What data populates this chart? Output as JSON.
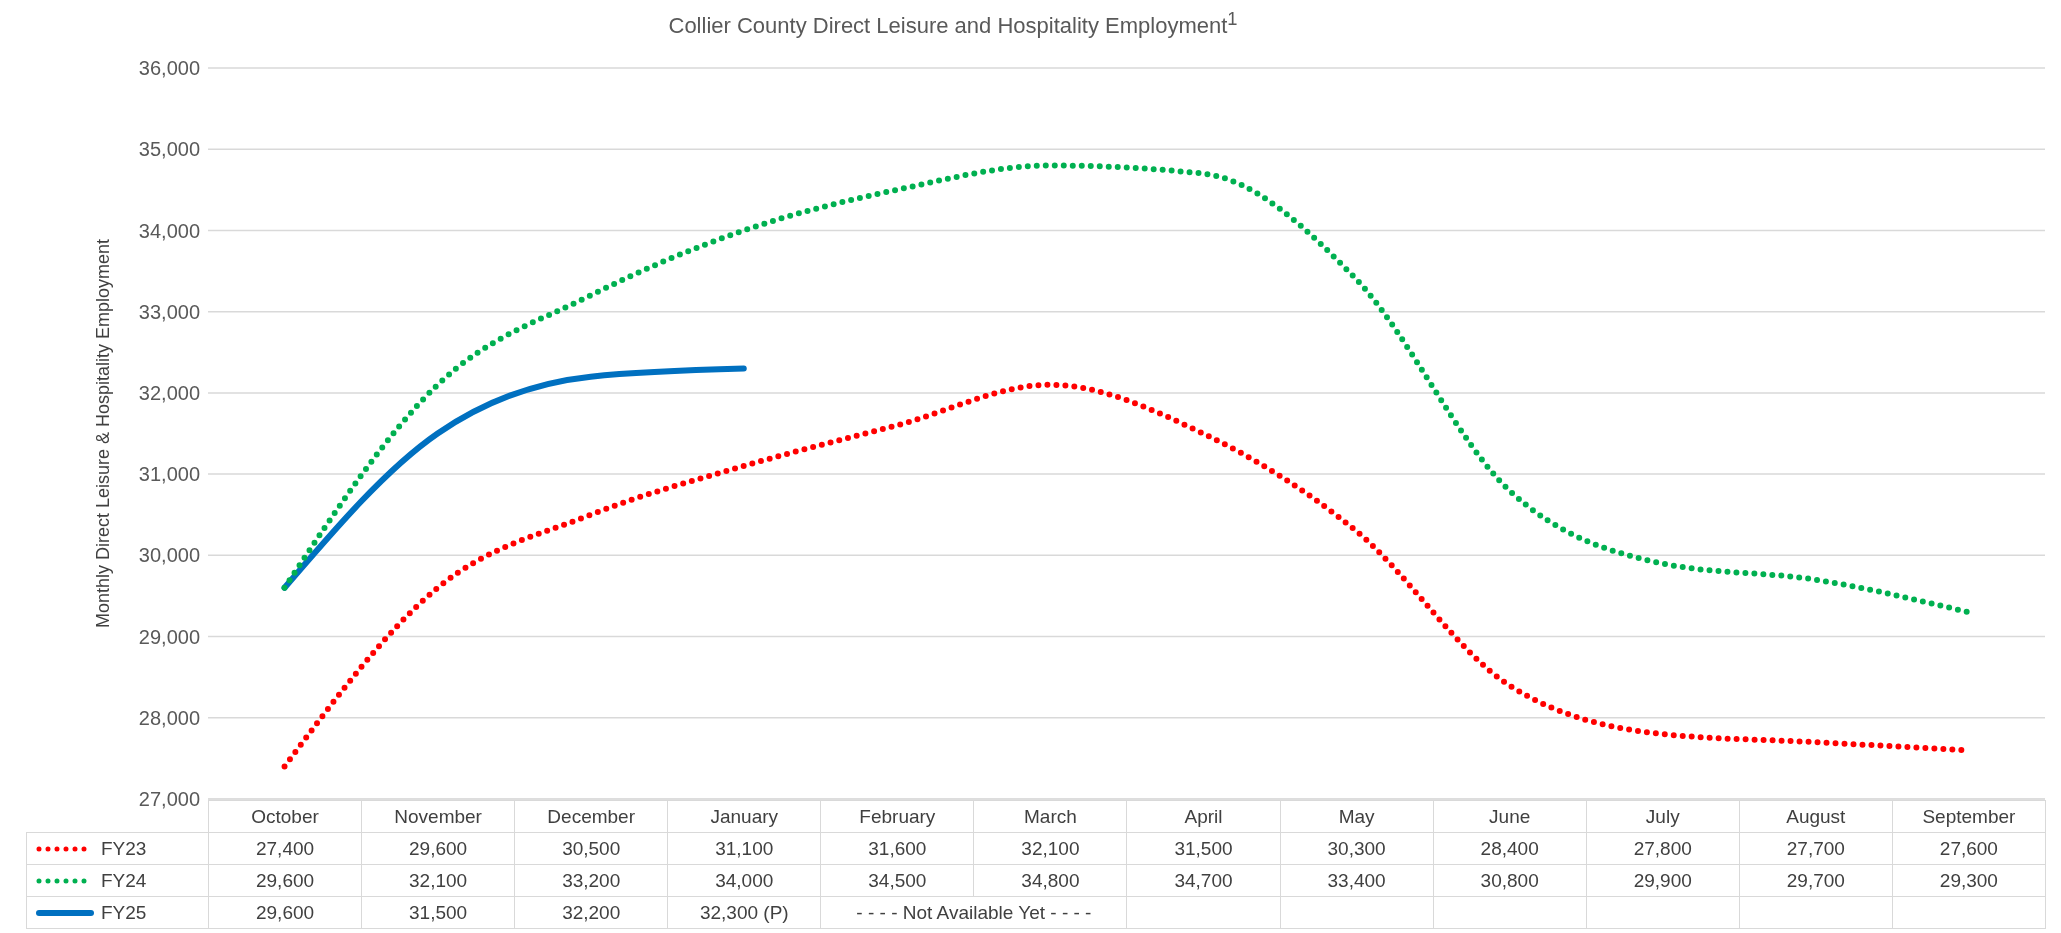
{
  "chart_data": {
    "type": "line",
    "title": "Collier County Direct Leisure and Hospitality Employment$^{1}$",
    "ylabel": "Monthly Direct Leisure & Hospitality Employment",
    "categories": [
      "October",
      "November",
      "December",
      "January",
      "February",
      "March",
      "April",
      "May",
      "June",
      "July",
      "August",
      "September"
    ],
    "series": [
      {
        "name": "FY23",
        "color": "#ff0000",
        "line_style": "dotted",
        "values": [
          27400,
          29600,
          30500,
          31100,
          31600,
          32100,
          31500,
          30300,
          28400,
          27800,
          27700,
          27600
        ],
        "value_labels": [
          "27,400",
          "29,600",
          "30,500",
          "31,100",
          "31,600",
          "32,100",
          "31,500",
          "30,300",
          "28,400",
          "27,800",
          "27,700",
          "27,600"
        ]
      },
      {
        "name": "FY24",
        "color": "#00b050",
        "line_style": "dotted",
        "values": [
          29600,
          32100,
          33200,
          34000,
          34500,
          34800,
          34700,
          33400,
          30800,
          29900,
          29700,
          29300
        ],
        "value_labels": [
          "29,600",
          "32,100",
          "33,200",
          "34,000",
          "34,500",
          "34,800",
          "34,700",
          "33,400",
          "30,800",
          "29,900",
          "29,700",
          "29,300"
        ]
      },
      {
        "name": "FY25",
        "color": "#0070c0",
        "line_style": "solid",
        "values": [
          29600,
          31500,
          32200,
          32300,
          null,
          null,
          null,
          null,
          null,
          null,
          null,
          null
        ],
        "value_labels": [
          "29,600",
          "31,500",
          "32,200",
          "32,300 (P)",
          null,
          null,
          null,
          null,
          null,
          null,
          null,
          null
        ]
      }
    ],
    "annotations": [
      "- - - - Not Available Yet - - - -"
    ],
    "ylim": [
      27000,
      36000
    ],
    "yticks": [
      {
        "value": 27000,
        "label": "27,000"
      },
      {
        "value": 28000,
        "label": "28,000"
      },
      {
        "value": 29000,
        "label": "29,000"
      },
      {
        "value": 30000,
        "label": "30,000"
      },
      {
        "value": 31000,
        "label": "31,000"
      },
      {
        "value": 32000,
        "label": "32,000"
      },
      {
        "value": 33000,
        "label": "33,000"
      },
      {
        "value": 34000,
        "label": "34,000"
      },
      {
        "value": 35000,
        "label": "35,000"
      },
      {
        "value": 36000,
        "label": "36,000"
      }
    ],
    "grid": "y",
    "legend": "bottom",
    "marker": "none"
  }
}
